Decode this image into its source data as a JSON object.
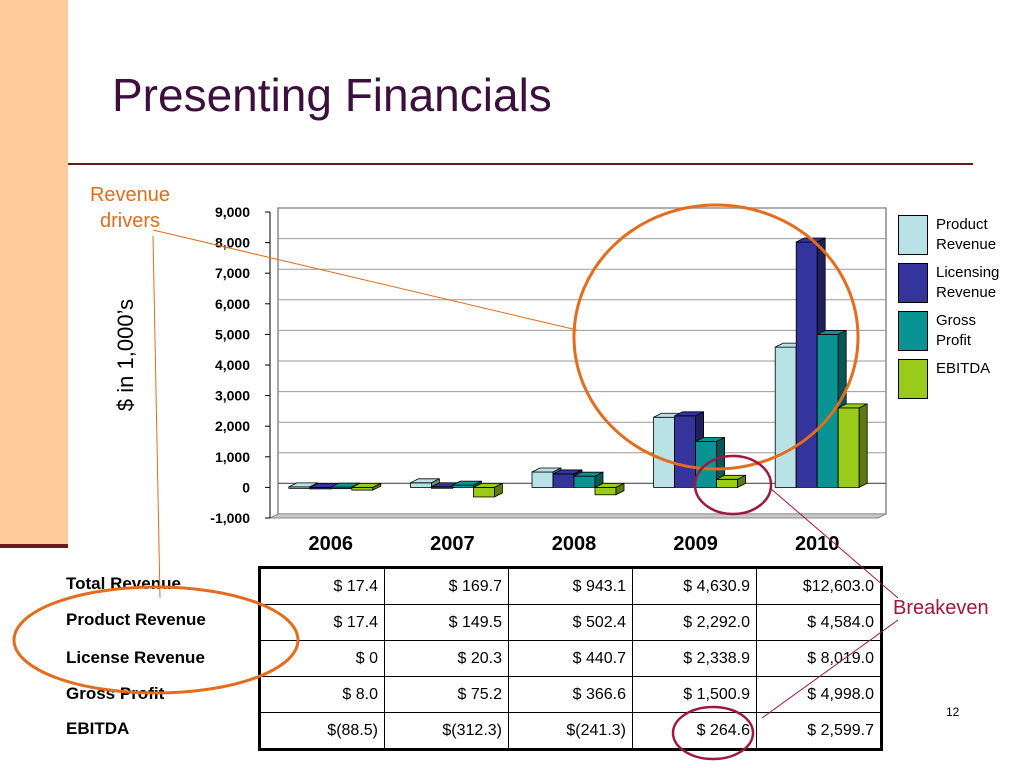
{
  "slide": {
    "title": "Presenting Financials",
    "page_number": "12",
    "ylabel": "$ in 1,000’s"
  },
  "annotations": {
    "revenue_drivers_line1": "Revenue",
    "revenue_drivers_line2": "drivers",
    "breakeven": "Breakeven"
  },
  "colors": {
    "product": "#b9e2e6",
    "licensing": "#34349c",
    "gross": "#0a9393",
    "ebitda": "#99cc1a",
    "annotation_orange": "#e46c1a",
    "annotation_crimson": "#a0173f",
    "sidebar": "#fecc99",
    "rule": "#6b1a1a",
    "title": "#3d0f3d"
  },
  "legend": [
    {
      "line1": "Product",
      "line2": "Revenue",
      "color": "#b9e2e6"
    },
    {
      "line1": "Licensing",
      "line2": "Revenue",
      "color": "#34349c"
    },
    {
      "line1": "Gross",
      "line2": "Profit",
      "color": "#0a9393"
    },
    {
      "line1": "EBITDA",
      "line2": "",
      "color": "#99cc1a"
    }
  ],
  "chart_data": {
    "type": "bar",
    "categories": [
      "2006",
      "2007",
      "2008",
      "2009",
      "2010"
    ],
    "series": [
      {
        "name": "Product Revenue",
        "values": [
          17.4,
          149.5,
          502.4,
          2292.0,
          4584.0
        ]
      },
      {
        "name": "Licensing Revenue",
        "values": [
          0,
          20.3,
          440.7,
          2338.9,
          8019.0
        ]
      },
      {
        "name": "Gross Profit",
        "values": [
          8.0,
          75.2,
          366.6,
          1500.9,
          4998.0
        ]
      },
      {
        "name": "EBITDA",
        "values": [
          -88.5,
          -312.3,
          -241.3,
          264.6,
          2599.7
        ]
      }
    ],
    "ylabel": "$ in 1,000’s",
    "ylim": [
      -1000,
      9000
    ],
    "yticks": [
      "-1,000",
      "0",
      "1,000",
      "2,000",
      "3,000",
      "4,000",
      "5,000",
      "6,000",
      "7,000",
      "8,000",
      "9,000"
    ],
    "grid": true,
    "legend_position": "right"
  },
  "table": {
    "rows": [
      {
        "label": "Total Revenue",
        "cells": [
          "$ 17.4",
          "$ 169.7",
          "$ 943.1",
          "$ 4,630.9",
          "$12,603.0"
        ]
      },
      {
        "label": "Product Revenue",
        "cells": [
          "$ 17.4",
          "$ 149.5",
          "$ 502.4",
          "$ 2,292.0",
          "$ 4,584.0"
        ]
      },
      {
        "label": "License Revenue",
        "cells": [
          "$ 0",
          "$ 20.3",
          "$ 440.7",
          "$ 2,338.9",
          "$ 8,019.0"
        ]
      },
      {
        "label": "Gross Profit",
        "cells": [
          "$ 8.0",
          "$ 75.2",
          "$ 366.6",
          "$ 1,500.9",
          "$ 4,998.0"
        ]
      },
      {
        "label": "EBITDA",
        "cells": [
          "$(88.5)",
          "$(312.3)",
          "$(241.3)",
          "$ 264.6",
          "$ 2,599.7"
        ]
      }
    ]
  }
}
